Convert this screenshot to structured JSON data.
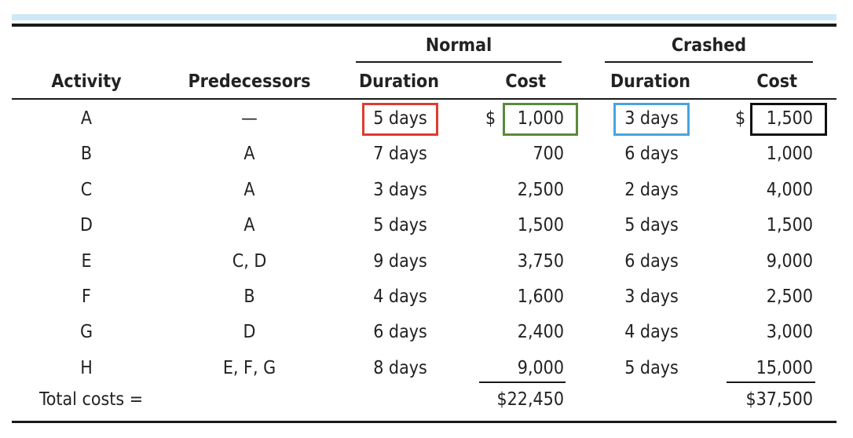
{
  "table": {
    "group_headers": {
      "normal": "Normal",
      "crashed": "Crashed"
    },
    "columns": [
      "Activity",
      "Predecessors",
      "Duration",
      "Cost",
      "Duration",
      "Cost"
    ],
    "rows": [
      {
        "activity": "A",
        "pred": "—",
        "nd": "5 days",
        "nc": "1,000",
        "cd": "3 days",
        "cc": "1,500",
        "ncur": "$",
        "ccur": "$"
      },
      {
        "activity": "B",
        "pred": "A",
        "nd": "7 days",
        "nc": "700",
        "cd": "6 days",
        "cc": "1,000"
      },
      {
        "activity": "C",
        "pred": "A",
        "nd": "3 days",
        "nc": "2,500",
        "cd": "2 days",
        "cc": "4,000"
      },
      {
        "activity": "D",
        "pred": "A",
        "nd": "5 days",
        "nc": "1,500",
        "cd": "5 days",
        "cc": "1,500"
      },
      {
        "activity": "E",
        "pred": "C, D",
        "nd": "9 days",
        "nc": "3,750",
        "cd": "6 days",
        "cc": "9,000"
      },
      {
        "activity": "F",
        "pred": "B",
        "nd": "4 days",
        "nc": "1,600",
        "cd": "3 days",
        "cc": "2,500"
      },
      {
        "activity": "G",
        "pred": "D",
        "nd": "6 days",
        "nc": "2,400",
        "cd": "4 days",
        "cc": "3,000"
      },
      {
        "activity": "H",
        "pred": "E, F, G",
        "nd": "8 days",
        "nc": "9,000",
        "cd": "5 days",
        "cc": "15,000"
      }
    ],
    "totals": {
      "label": "Total costs =",
      "normal": "$22,450",
      "crashed": "$37,500"
    }
  },
  "highlight_colors": {
    "normal_duration": "#e03a2f",
    "normal_cost": "#5a8a3a",
    "crashed_duration": "#4aa3df",
    "crashed_cost": "#111111"
  }
}
